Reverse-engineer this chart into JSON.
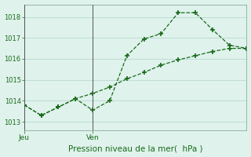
{
  "line1_x": [
    0,
    1,
    2,
    3,
    4,
    5,
    6,
    7,
    8,
    9,
    10,
    11,
    12,
    13
  ],
  "line1_y": [
    1013.8,
    1013.3,
    1013.7,
    1014.1,
    1013.55,
    1014.0,
    1016.15,
    1016.95,
    1017.2,
    1018.2,
    1018.2,
    1017.4,
    1016.65,
    1016.5
  ],
  "line2_x": [
    0,
    1,
    2,
    3,
    4,
    5,
    6,
    7,
    8,
    9,
    10,
    11,
    12,
    13
  ],
  "line2_y": [
    1013.8,
    1013.3,
    1013.7,
    1014.1,
    1014.35,
    1014.65,
    1015.05,
    1015.35,
    1015.7,
    1015.95,
    1016.15,
    1016.35,
    1016.5,
    1016.5
  ],
  "yticks": [
    1013,
    1014,
    1015,
    1016,
    1017,
    1018
  ],
  "ylim": [
    1012.6,
    1018.6
  ],
  "xlim": [
    0,
    13
  ],
  "xtick_positions": [
    0,
    4
  ],
  "xtick_labels": [
    "Jeu",
    "Ven"
  ],
  "xlabel": "Pression niveau de la mer(  hPa )",
  "vline_x": [
    0,
    4
  ],
  "line_color": "#1a6b1a",
  "bg_color": "#dff2ec",
  "grid_color": "#b8d8d0",
  "spine_color": "#8aaa9a",
  "marker": "+"
}
